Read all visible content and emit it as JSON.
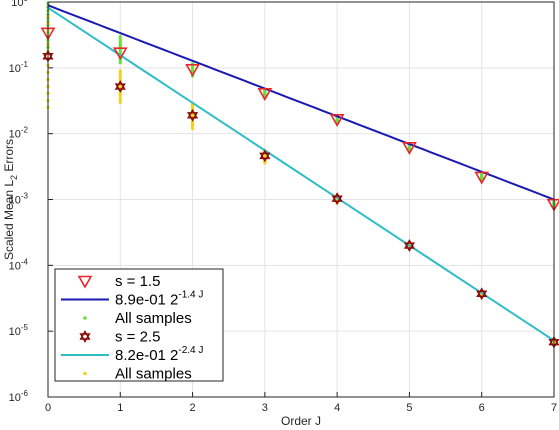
{
  "chart_data": {
    "type": "scatter",
    "xlabel": "Order J",
    "ylabel_main": "Scaled Mean L",
    "ylabel_sub": "2",
    "ylabel_tail": " Errors",
    "xlim": [
      0,
      7
    ],
    "ylim_log10": [
      -6,
      0
    ],
    "yscale": "log",
    "grid": true,
    "legend_position": "bottom-left",
    "x_ticks": [
      "0",
      "1",
      "2",
      "3",
      "4",
      "5",
      "6",
      "7"
    ],
    "y_ticks": [
      {
        "base": "10",
        "exp": "0"
      },
      {
        "base": "10",
        "exp": "-1"
      },
      {
        "base": "10",
        "exp": "-2"
      },
      {
        "base": "10",
        "exp": "-3"
      },
      {
        "base": "10",
        "exp": "-4"
      },
      {
        "base": "10",
        "exp": "-5"
      },
      {
        "base": "10",
        "exp": "-6"
      }
    ],
    "series": [
      {
        "name": "s = 1.5",
        "kind": "marker-triangle-down",
        "color": "#e8262b",
        "x": [
          0,
          1,
          2,
          3,
          4,
          5,
          6,
          7
        ],
        "y": [
          0.34,
          0.17,
          0.095,
          0.041,
          0.0165,
          0.0062,
          0.0022,
          0.00085
        ]
      },
      {
        "name": "8.9e-01 2",
        "name_exp": "-1.4 J",
        "kind": "line",
        "color": "#1a1ab3",
        "coef": 0.89,
        "rate": 1.4
      },
      {
        "name": "All samples",
        "kind": "samples",
        "color": "#66e03a",
        "ranges": [
          {
            "x": 0,
            "lo": 0.18,
            "hi": 0.95
          },
          {
            "x": 1,
            "lo": 0.12,
            "hi": 0.3
          },
          {
            "x": 2,
            "lo": 0.075,
            "hi": 0.115
          },
          {
            "x": 3,
            "lo": 0.035,
            "hi": 0.046
          },
          {
            "x": 4,
            "lo": 0.0145,
            "hi": 0.0185
          },
          {
            "x": 5,
            "lo": 0.0055,
            "hi": 0.0068
          },
          {
            "x": 6,
            "lo": 0.002,
            "hi": 0.0024
          },
          {
            "x": 7,
            "lo": 0.00078,
            "hi": 0.00092
          }
        ]
      },
      {
        "name": "s = 2.5",
        "kind": "marker-hexagram",
        "color": "#8b0a0a",
        "x": [
          0,
          1,
          2,
          3,
          4,
          5,
          6,
          7
        ],
        "y": [
          0.15,
          0.052,
          0.019,
          0.0046,
          0.00103,
          0.0002,
          3.7e-05,
          6.8e-06
        ]
      },
      {
        "name": "8.2e-01 2",
        "name_exp": "-2.4 J",
        "kind": "line",
        "color": "#2dbdc6",
        "coef": 0.82,
        "rate": 2.4
      },
      {
        "name": "All samples",
        "kind": "samples",
        "color": "#f2d21c",
        "ranges": [
          {
            "x": 0,
            "lo": 0.025,
            "hi": 0.6
          },
          {
            "x": 1,
            "lo": 0.03,
            "hi": 0.09
          },
          {
            "x": 2,
            "lo": 0.012,
            "hi": 0.028
          },
          {
            "x": 3,
            "lo": 0.0036,
            "hi": 0.0056
          },
          {
            "x": 4,
            "lo": 0.00088,
            "hi": 0.00118
          },
          {
            "x": 5,
            "lo": 0.000175,
            "hi": 0.000225
          },
          {
            "x": 6,
            "lo": 3.3e-05,
            "hi": 4.1e-05
          },
          {
            "x": 7,
            "lo": 6.2e-06,
            "hi": 7.4e-06
          }
        ]
      }
    ]
  }
}
